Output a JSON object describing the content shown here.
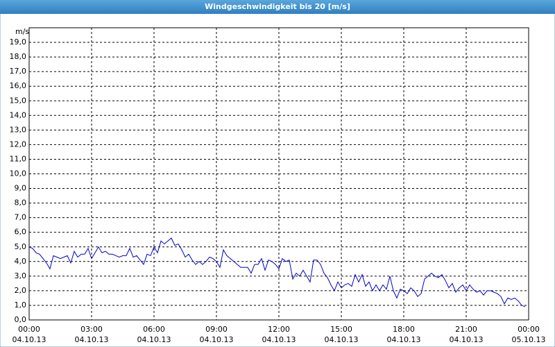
{
  "chart_data": {
    "type": "line",
    "title": "Windgeschwindigkeit bis 20 [m/s]",
    "y_unit": "m/s",
    "x": [
      0,
      10,
      20,
      30,
      40,
      50,
      60,
      70,
      80,
      90,
      100,
      110,
      120,
      130,
      140,
      150,
      160,
      170,
      180,
      190,
      200,
      210,
      220,
      230,
      240,
      250,
      260,
      270,
      280,
      290,
      300,
      310,
      320,
      330,
      340,
      350,
      360,
      370,
      380,
      390,
      400,
      410,
      420,
      430,
      440,
      450,
      460,
      470,
      480,
      490,
      500,
      510,
      520,
      530,
      540,
      550,
      560,
      570,
      580,
      590,
      600,
      610,
      620,
      630,
      640,
      650,
      660,
      670,
      680,
      690,
      700,
      710,
      720,
      730,
      740,
      750,
      760,
      770,
      780,
      790,
      800,
      810,
      820,
      830,
      840,
      850,
      860,
      870,
      880,
      890,
      900,
      910,
      920,
      930,
      940,
      950,
      960,
      970,
      980,
      990,
      1000,
      1010,
      1020,
      1030,
      1040,
      1050,
      1060,
      1070,
      1080,
      1090,
      1100,
      1110,
      1120,
      1130,
      1140,
      1150,
      1160,
      1170,
      1180,
      1190,
      1200,
      1210,
      1220,
      1230,
      1240,
      1250,
      1260,
      1270,
      1280,
      1290,
      1300,
      1310,
      1320,
      1330,
      1340,
      1350,
      1360,
      1370,
      1380,
      1390,
      1400,
      1410,
      1420,
      1430
    ],
    "series": [
      {
        "name": "Windgeschwindigkeit",
        "color": "#0000cc",
        "values": [
          5.0,
          4.9,
          4.6,
          4.5,
          4.2,
          3.9,
          3.5,
          4.4,
          4.3,
          4.2,
          4.3,
          4.4,
          3.9,
          4.7,
          4.3,
          4.5,
          4.5,
          4.9,
          4.2,
          4.6,
          5.0,
          4.6,
          4.7,
          4.5,
          4.5,
          4.4,
          4.3,
          4.4,
          4.4,
          4.9,
          4.3,
          4.4,
          4.1,
          3.8,
          4.5,
          4.4,
          5.0,
          4.6,
          5.4,
          5.2,
          5.4,
          5.6,
          5.1,
          5.2,
          4.8,
          4.3,
          4.5,
          4.1,
          3.8,
          4.0,
          3.8,
          4.0,
          4.3,
          4.2,
          4.0,
          3.6,
          4.8,
          4.4,
          4.2,
          4.0,
          3.8,
          3.6,
          3.6,
          3.6,
          3.2,
          3.8,
          3.8,
          4.2,
          3.4,
          4.1,
          4.0,
          3.8,
          3.5,
          4.2,
          4.0,
          4.1,
          2.8,
          3.2,
          3.0,
          3.4,
          3.0,
          2.6,
          4.1,
          4.1,
          3.8,
          3.2,
          2.9,
          2.4,
          2.0,
          2.6,
          2.2,
          2.4,
          2.5,
          2.3,
          3.1,
          2.6,
          3.1,
          2.3,
          2.6,
          2.0,
          2.4,
          2.0,
          2.4,
          2.1,
          3.0,
          2.0,
          1.5,
          2.1,
          2.0,
          1.8,
          2.2,
          2.0,
          1.6,
          1.8,
          2.8,
          3.0,
          3.2,
          3.0,
          2.9,
          3.1,
          2.7,
          2.2,
          2.5,
          1.9,
          2.2,
          2.4,
          2.0,
          2.4,
          2.1,
          1.9,
          2.0,
          1.7,
          2.0,
          2.0,
          1.9,
          1.8,
          1.6,
          1.1,
          1.5,
          1.4,
          1.5,
          1.3,
          1.0,
          0.9
        ]
      }
    ],
    "xlim": [
      0,
      1440
    ],
    "xticks": [
      {
        "value": 0,
        "label": "00:00 04.10.13"
      },
      {
        "value": 180,
        "label": "03:00 04.10.13"
      },
      {
        "value": 360,
        "label": "06:00 04.10.13"
      },
      {
        "value": 540,
        "label": "09:00 04.10.13"
      },
      {
        "value": 720,
        "label": "12:00 04.10.13"
      },
      {
        "value": 900,
        "label": "15:00 04.10.13"
      },
      {
        "value": 1080,
        "label": "18:00 04.10.13"
      },
      {
        "value": 1260,
        "label": "21:00 04.10.13"
      },
      {
        "value": 1440,
        "label": "00:00 05.10.13"
      }
    ],
    "ylim": [
      0,
      20
    ],
    "yticks": [
      {
        "value": 0,
        "label": "0,0"
      },
      {
        "value": 1,
        "label": "1,0"
      },
      {
        "value": 2,
        "label": "2,0"
      },
      {
        "value": 3,
        "label": "3,0"
      },
      {
        "value": 4,
        "label": "4,0"
      },
      {
        "value": 5,
        "label": "5,0"
      },
      {
        "value": 6,
        "label": "6,0"
      },
      {
        "value": 7,
        "label": "7,0"
      },
      {
        "value": 8,
        "label": "8,0"
      },
      {
        "value": 9,
        "label": "9,0"
      },
      {
        "value": 10,
        "label": "10,0"
      },
      {
        "value": 11,
        "label": "11,0"
      },
      {
        "value": 12,
        "label": "12,0"
      },
      {
        "value": 13,
        "label": "13,0"
      },
      {
        "value": 14,
        "label": "14,0"
      },
      {
        "value": 15,
        "label": "15,0"
      },
      {
        "value": 16,
        "label": "16,0"
      },
      {
        "value": 17,
        "label": "17,0"
      },
      {
        "value": 18,
        "label": "18,0"
      },
      {
        "value": 19,
        "label": "19,0"
      }
    ],
    "grid": true
  }
}
